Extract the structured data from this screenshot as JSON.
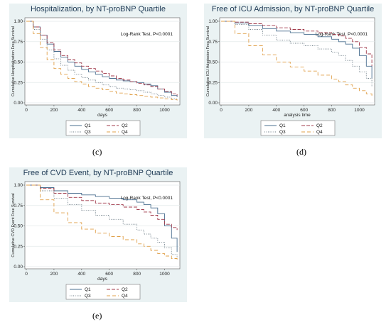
{
  "captions": {
    "c": "(c)",
    "d": "(d)",
    "e": "(e)"
  },
  "legend_style": {
    "Q1": {
      "color": "#4a6f8f",
      "dash": ""
    },
    "Q2": {
      "color": "#a0394a",
      "dash": "5,2"
    },
    "Q3": {
      "color": "#6b7b85",
      "dash": "1,1.5"
    },
    "Q4": {
      "color": "#e0a04a",
      "dash": "5,3"
    }
  },
  "chart_data": [
    {
      "type": "line",
      "title": "Hospitalization, by NT-proBNP Quartile",
      "annotation": "Log-Rank Test, P<0.0001",
      "xlabel": "days",
      "ylabel": "Cumulative Hospitalization Free Survival",
      "xlim": [
        0,
        1100
      ],
      "ylim": [
        0,
        1
      ],
      "xticks": [
        "0",
        "200",
        "400",
        "600",
        "800",
        "1000"
      ],
      "yticks": [
        "0.00",
        "0.25",
        "0.50",
        "0.75",
        "1.00"
      ],
      "grid": true,
      "legend_position": "bottom",
      "series": [
        {
          "name": "Q1",
          "x": [
            0,
            50,
            100,
            150,
            200,
            250,
            300,
            350,
            400,
            450,
            500,
            550,
            600,
            650,
            700,
            750,
            800,
            850,
            900,
            950,
            1000,
            1050,
            1090
          ],
          "y": [
            1.0,
            0.93,
            0.83,
            0.72,
            0.63,
            0.56,
            0.5,
            0.45,
            0.41,
            0.38,
            0.35,
            0.32,
            0.3,
            0.28,
            0.27,
            0.26,
            0.25,
            0.23,
            0.21,
            0.17,
            0.13,
            0.09,
            0.07
          ]
        },
        {
          "name": "Q2",
          "x": [
            0,
            50,
            100,
            150,
            200,
            250,
            300,
            350,
            400,
            450,
            500,
            550,
            600,
            650,
            700,
            750,
            800,
            850,
            900,
            950,
            1000,
            1050,
            1090
          ],
          "y": [
            1.0,
            0.93,
            0.83,
            0.74,
            0.65,
            0.58,
            0.53,
            0.49,
            0.45,
            0.42,
            0.39,
            0.36,
            0.33,
            0.3,
            0.28,
            0.26,
            0.24,
            0.22,
            0.2,
            0.17,
            0.14,
            0.11,
            0.09
          ]
        },
        {
          "name": "Q3",
          "x": [
            0,
            50,
            100,
            150,
            200,
            250,
            300,
            350,
            400,
            450,
            500,
            550,
            600,
            650,
            700,
            750,
            800,
            850,
            900,
            950,
            1000,
            1050,
            1090
          ],
          "y": [
            1.0,
            0.9,
            0.78,
            0.65,
            0.54,
            0.46,
            0.4,
            0.35,
            0.31,
            0.28,
            0.25,
            0.22,
            0.2,
            0.18,
            0.17,
            0.16,
            0.15,
            0.13,
            0.11,
            0.09,
            0.07,
            0.05,
            0.04
          ]
        },
        {
          "name": "Q4",
          "x": [
            0,
            50,
            100,
            150,
            200,
            250,
            300,
            350,
            400,
            450,
            500,
            550,
            600,
            650,
            700,
            750,
            800,
            850,
            900,
            950,
            1000,
            1050,
            1090
          ],
          "y": [
            1.0,
            0.85,
            0.68,
            0.53,
            0.42,
            0.35,
            0.3,
            0.26,
            0.23,
            0.2,
            0.18,
            0.16,
            0.14,
            0.12,
            0.11,
            0.1,
            0.09,
            0.08,
            0.07,
            0.06,
            0.05,
            0.04,
            0.03
          ]
        }
      ]
    },
    {
      "type": "line",
      "title": "Free of ICU Admission, by NT-proBNP Quartile",
      "annotation": "Log-Rank Test, P<0.0001",
      "xlabel": "analysis time",
      "ylabel": "Cumulative ICU Admission Free Survival",
      "xlim": [
        0,
        1100
      ],
      "ylim": [
        0,
        1
      ],
      "xticks": [
        "0",
        "200",
        "400",
        "600",
        "800",
        "1000"
      ],
      "yticks": [
        "0.00",
        "0.25",
        "0.50",
        "0.75",
        "1.00"
      ],
      "grid": true,
      "legend_position": "bottom",
      "series": [
        {
          "name": "Q1",
          "x": [
            0,
            100,
            200,
            300,
            400,
            500,
            600,
            700,
            800,
            850,
            900,
            950,
            1000,
            1050,
            1090
          ],
          "y": [
            1.0,
            0.98,
            0.95,
            0.91,
            0.88,
            0.86,
            0.84,
            0.81,
            0.78,
            0.75,
            0.72,
            0.67,
            0.58,
            0.45,
            0.3
          ]
        },
        {
          "name": "Q2",
          "x": [
            0,
            100,
            200,
            300,
            400,
            500,
            600,
            700,
            800,
            850,
            900,
            950,
            1000,
            1050,
            1090
          ],
          "y": [
            1.0,
            0.99,
            0.97,
            0.95,
            0.92,
            0.9,
            0.88,
            0.86,
            0.84,
            0.82,
            0.79,
            0.75,
            0.68,
            0.6,
            0.45
          ]
        },
        {
          "name": "Q3",
          "x": [
            0,
            100,
            200,
            300,
            400,
            500,
            600,
            700,
            800,
            850,
            900,
            950,
            1000,
            1050,
            1090
          ],
          "y": [
            1.0,
            0.96,
            0.9,
            0.83,
            0.77,
            0.73,
            0.7,
            0.66,
            0.62,
            0.58,
            0.52,
            0.45,
            0.38,
            0.3,
            0.2
          ]
        },
        {
          "name": "Q4",
          "x": [
            0,
            100,
            200,
            300,
            400,
            500,
            600,
            700,
            800,
            850,
            900,
            950,
            1000,
            1050,
            1090
          ],
          "y": [
            1.0,
            0.85,
            0.7,
            0.59,
            0.5,
            0.44,
            0.39,
            0.34,
            0.29,
            0.26,
            0.22,
            0.18,
            0.15,
            0.11,
            0.08
          ]
        }
      ]
    },
    {
      "type": "line",
      "title": "Free of CVD Event, by NT-proBNP Quartile",
      "annotation": "Log-Rank Test, P<0.0001",
      "xlabel": "days",
      "ylabel": "Cumulative CVD Event Free Survival",
      "xlim": [
        0,
        1100
      ],
      "ylim": [
        0,
        1
      ],
      "xticks": [
        "0",
        "200",
        "400",
        "600",
        "800",
        "1000"
      ],
      "yticks": [
        "0.00",
        "0.25",
        "0.50",
        "0.75",
        "1.00"
      ],
      "grid": true,
      "legend_position": "bottom",
      "series": [
        {
          "name": "Q1",
          "x": [
            0,
            100,
            200,
            300,
            400,
            500,
            600,
            700,
            800,
            850,
            900,
            950,
            1000,
            1050,
            1090
          ],
          "y": [
            1.0,
            0.97,
            0.93,
            0.9,
            0.88,
            0.86,
            0.84,
            0.82,
            0.79,
            0.76,
            0.72,
            0.65,
            0.5,
            0.35,
            0.18
          ]
        },
        {
          "name": "Q2",
          "x": [
            0,
            100,
            200,
            300,
            400,
            500,
            600,
            700,
            800,
            850,
            900,
            950,
            1000,
            1050,
            1090
          ],
          "y": [
            1.0,
            0.96,
            0.9,
            0.85,
            0.81,
            0.78,
            0.76,
            0.73,
            0.7,
            0.67,
            0.63,
            0.58,
            0.52,
            0.48,
            0.45
          ]
        },
        {
          "name": "Q3",
          "x": [
            0,
            100,
            200,
            300,
            400,
            500,
            600,
            700,
            800,
            850,
            900,
            950,
            1000,
            1050,
            1090
          ],
          "y": [
            1.0,
            0.93,
            0.84,
            0.76,
            0.69,
            0.63,
            0.58,
            0.52,
            0.45,
            0.4,
            0.35,
            0.3,
            0.23,
            0.15,
            0.1
          ]
        },
        {
          "name": "Q4",
          "x": [
            0,
            100,
            200,
            300,
            400,
            500,
            600,
            700,
            800,
            850,
            900,
            950,
            1000,
            1050,
            1090
          ],
          "y": [
            1.0,
            0.82,
            0.66,
            0.54,
            0.46,
            0.41,
            0.37,
            0.33,
            0.28,
            0.25,
            0.2,
            0.16,
            0.13,
            0.1,
            0.08
          ]
        }
      ]
    }
  ]
}
